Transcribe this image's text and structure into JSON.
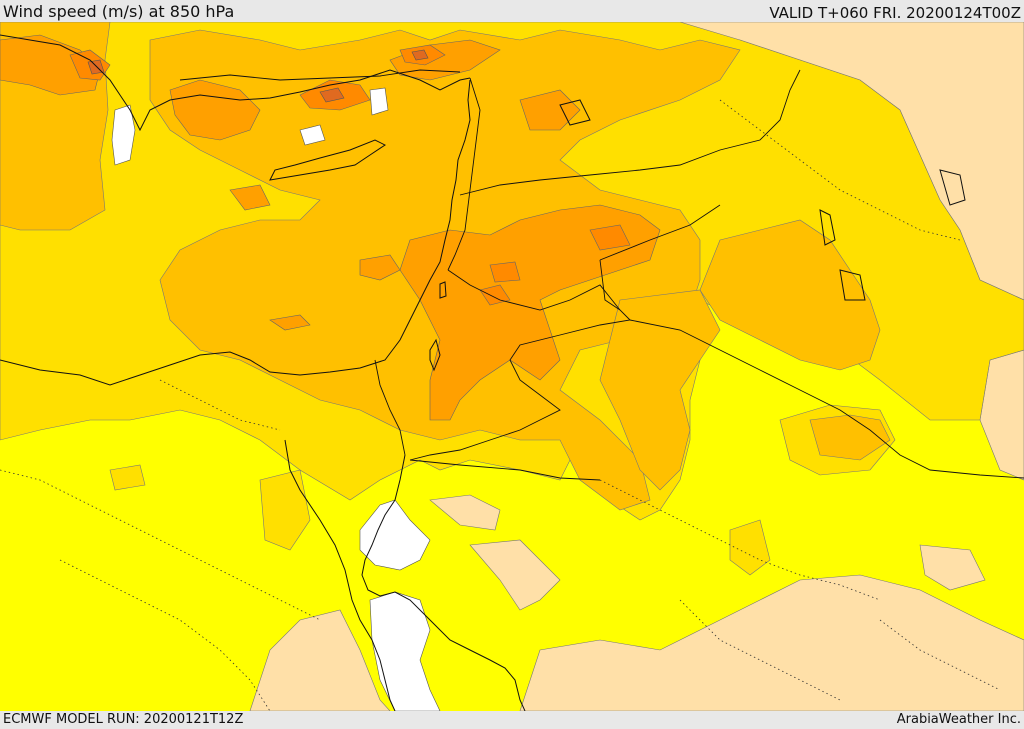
{
  "header": {
    "title": "Wind speed (m/s) at 850 hPa",
    "valid": "VALID T+060 FRI. 20200124T00Z"
  },
  "footer": {
    "model_run": "ECMWF MODEL RUN: 20200121T12Z",
    "credit": "ArabiaWeather Inc."
  },
  "map": {
    "fill_colors": {
      "calm": "#ffffff",
      "light": "#ffe0a8",
      "moderate": "#ffff00",
      "fresh": "#ffe000",
      "strong": "#ffc000",
      "very_strong": "#ffa000",
      "gale": "#ff8a00",
      "severe": "#e06a20"
    },
    "layers": [
      "wind-speed-fill",
      "coastlines",
      "country-borders",
      "internal-borders"
    ]
  }
}
